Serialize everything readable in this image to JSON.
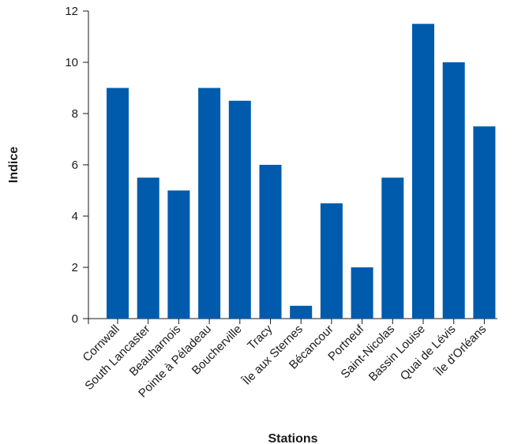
{
  "chart_data": {
    "type": "bar",
    "title": "",
    "xlabel": "Stations",
    "ylabel": "Indice",
    "ylim": [
      0,
      12
    ],
    "yticks": [
      0,
      2,
      4,
      6,
      8,
      10,
      12
    ],
    "grid": false,
    "legend": "none",
    "bar_color": "#005bac",
    "categories": [
      "Cornwall",
      "South Lancaster",
      "Beauharnois",
      "Pointe à Péladeau",
      "Boucherville",
      "Tracy",
      "Île aux Sternes",
      "Bécancour",
      "Portneuf",
      "Saint-Nicolas",
      "Bassin Louise",
      "Quai de Lévis",
      "Île d'Orléans"
    ],
    "values": [
      9,
      5.5,
      5,
      9,
      8.5,
      6,
      0.5,
      4.5,
      2,
      5.5,
      11.5,
      10,
      7.5
    ]
  }
}
